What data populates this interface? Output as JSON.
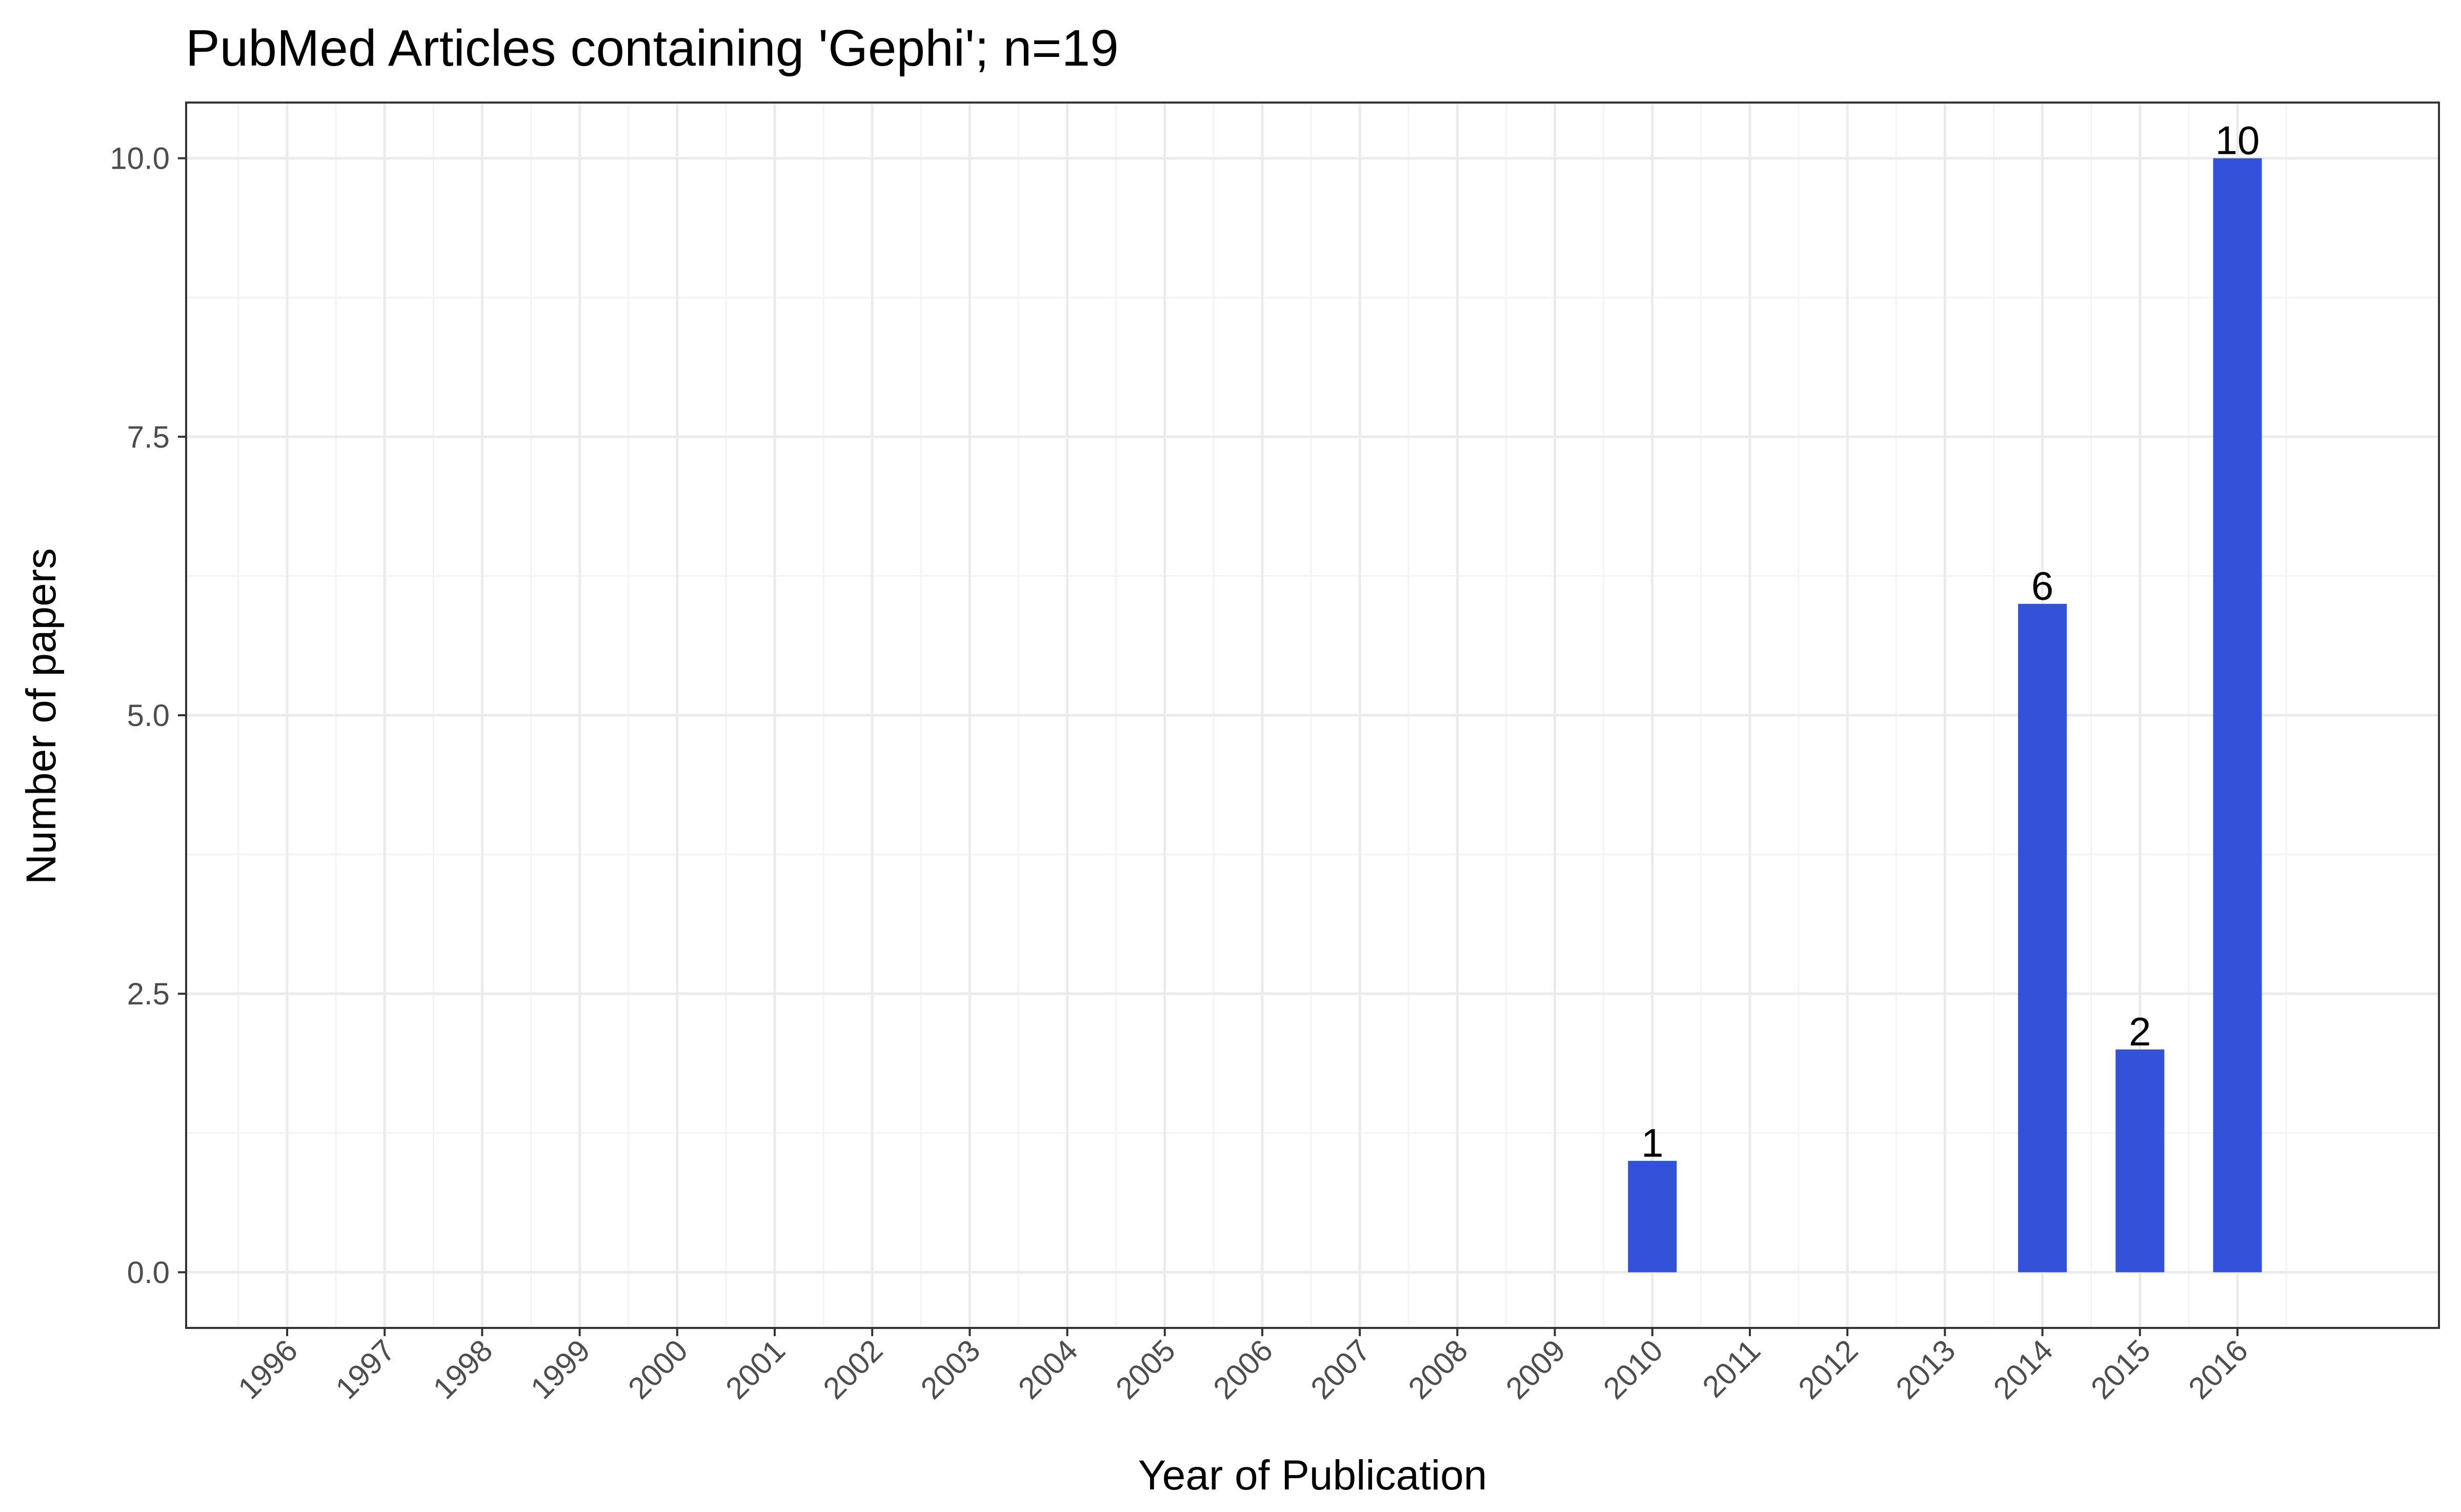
{
  "chart_data": {
    "type": "bar",
    "title": "PubMed Articles containing 'Gephi'; n=19",
    "xlabel": "Year of Publication",
    "ylabel": "Number of papers",
    "categories": [
      "1996",
      "1997",
      "1998",
      "1999",
      "2000",
      "2001",
      "2002",
      "2003",
      "2004",
      "2005",
      "2006",
      "2007",
      "2008",
      "2009",
      "2010",
      "2011",
      "2012",
      "2013",
      "2014",
      "2015",
      "2016"
    ],
    "values": [
      0,
      0,
      0,
      0,
      0,
      0,
      0,
      0,
      0,
      0,
      0,
      0,
      0,
      0,
      1,
      0,
      0,
      0,
      6,
      2,
      10
    ],
    "data_labels": [
      "",
      "",
      "",
      "",
      "",
      "",
      "",
      "",
      "",
      "",
      "",
      "",
      "",
      "",
      "1",
      "",
      "",
      "",
      "6",
      "2",
      "10"
    ],
    "y_ticks": [
      0,
      2.5,
      5,
      7.5,
      10
    ],
    "y_tick_labels": [
      "0.0",
      "2.5",
      "5.0",
      "7.5",
      "10.0"
    ],
    "ylim": [
      -0.5,
      10.5
    ],
    "grid": true,
    "legend": "none",
    "colors": {
      "bar": "#3452D9",
      "grid_major": "#EBEBEB",
      "grid_minor": "#F3F3F3",
      "panel_border": "#333333",
      "tick_text": "#4D4D4D"
    }
  }
}
